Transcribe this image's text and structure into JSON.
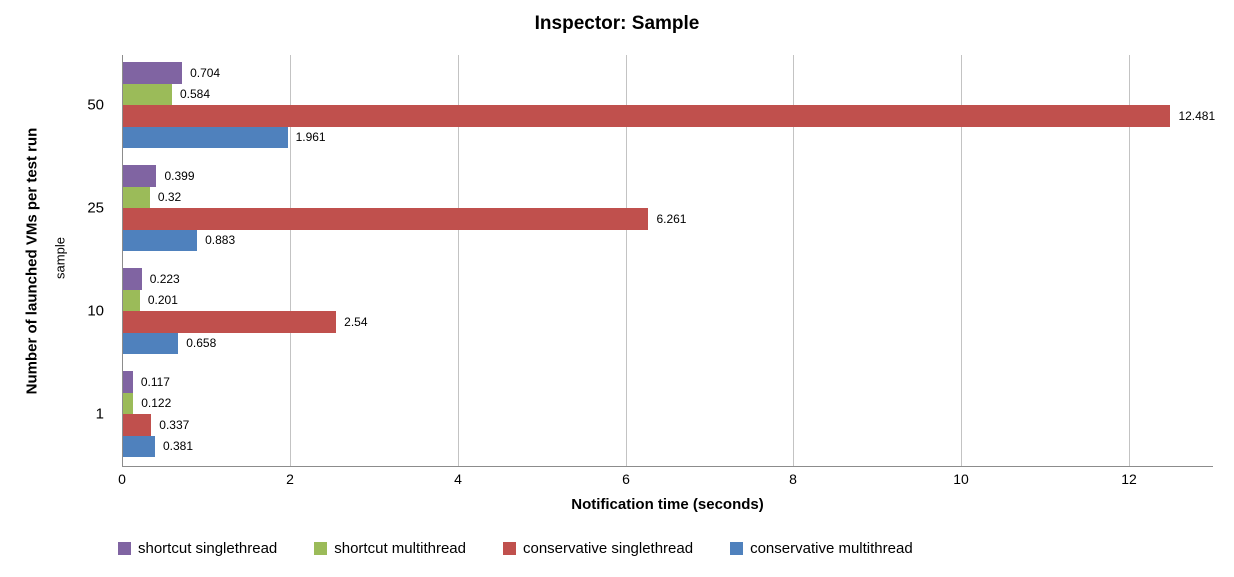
{
  "chart_data": {
    "type": "bar",
    "orientation": "horizontal",
    "title": "Inspector: Sample",
    "xlabel": "Notification time (seconds)",
    "ylabel": "Number of launched VMs per test run",
    "ylabel_secondary": "sample",
    "categories": [
      "50",
      "25",
      "10",
      "1"
    ],
    "xlim": [
      0,
      13
    ],
    "xticks": [
      "0",
      "2",
      "4",
      "6",
      "8",
      "10",
      "12"
    ],
    "grid": "vertical",
    "legend_position": "bottom",
    "series": [
      {
        "name": "shortcut singlethread",
        "color": "#8064A2",
        "values": [
          0.704,
          0.399,
          0.223,
          0.117
        ],
        "labels": [
          "0.704",
          "0.399",
          "0.223",
          "0.117"
        ]
      },
      {
        "name": "shortcut multithread",
        "color": "#9BBB59",
        "values": [
          0.584,
          0.32,
          0.201,
          0.122
        ],
        "labels": [
          "0.584",
          "0.32",
          "0.201",
          "0.122"
        ]
      },
      {
        "name": "conservative singlethread",
        "color": "#C0504D",
        "values": [
          12.481,
          6.261,
          2.54,
          0.337
        ],
        "labels": [
          "12.481",
          "6.261",
          "2.54",
          "0.337"
        ]
      },
      {
        "name": "conservative multithread",
        "color": "#4F81BD",
        "values": [
          1.961,
          0.883,
          0.658,
          0.381
        ],
        "labels": [
          "1.961",
          "0.883",
          "0.658",
          "0.381"
        ]
      }
    ]
  },
  "colors": {
    "background": "#FFFFFF",
    "gridline": "#C3C3C3",
    "axis_line": "#8C8C8C",
    "text": "#000000"
  }
}
